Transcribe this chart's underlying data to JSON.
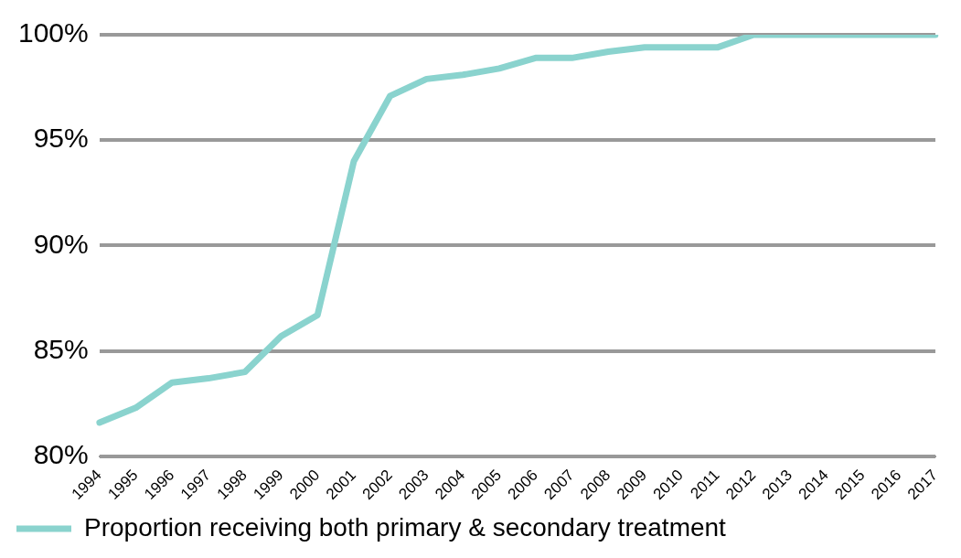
{
  "chart_data": {
    "type": "line",
    "categories": [
      "1994",
      "1995",
      "1996",
      "1997",
      "1998",
      "1999",
      "2000",
      "2001",
      "2002",
      "2003",
      "2004",
      "2005",
      "2006",
      "2007",
      "2008",
      "2009",
      "2010",
      "2011",
      "2012",
      "2013",
      "2014",
      "2015",
      "2016",
      "2017"
    ],
    "series": [
      {
        "name": "Proportion receiving both primary & secondary treatment",
        "color": "#8ad3ce",
        "values": [
          81.6,
          82.3,
          83.5,
          83.7,
          84.0,
          85.7,
          86.7,
          94.0,
          97.1,
          97.9,
          98.1,
          98.4,
          98.9,
          98.9,
          99.2,
          99.4,
          99.4,
          99.4,
          100,
          100,
          100,
          100,
          100,
          100
        ]
      }
    ],
    "ylim": [
      80,
      100
    ],
    "yticks": [
      {
        "value": 80,
        "label": "80%"
      },
      {
        "value": 85,
        "label": "85%"
      },
      {
        "value": 90,
        "label": "90%"
      },
      {
        "value": 95,
        "label": "95%"
      },
      {
        "value": 100,
        "label": "100%"
      }
    ],
    "grid": "y",
    "legend": "bottom",
    "marker": "none",
    "line_style": "solid"
  }
}
